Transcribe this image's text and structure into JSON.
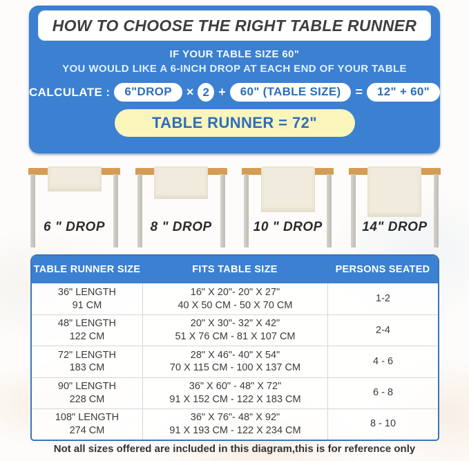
{
  "header": {
    "title": "HOW TO CHOOSE THE RIGHT TABLE RUNNER",
    "subtitle_line1": "IF YOUR TABLE SIZE 60\"",
    "subtitle_line2": "YOU WOULD LIKE A 6-INCH DROP AT EACH END OF YOUR TABLE",
    "calc": {
      "label": "CALCULATE :",
      "drop_pill": "6\"DROP",
      "times_sign": "×",
      "multiplier": "2",
      "plus_sign": "+",
      "table_size_pill": "60\"  (TABLE SIZE)",
      "equals_sign": "=",
      "sum_pill": "12\" + 60\"",
      "result": "TABLE RUNNER = 72\""
    }
  },
  "drops": [
    {
      "label": "6 \" DROP"
    },
    {
      "label": "8 \" DROP"
    },
    {
      "label": "10 \" DROP"
    },
    {
      "label": "14\" DROP"
    }
  ],
  "size_table": {
    "columns": [
      "TABLE RUNNER SIZE",
      "FITS TABLE SIZE",
      "PERSONS SEATED"
    ],
    "rows": [
      {
        "runner_in": "36\" LENGTH",
        "runner_cm": "91 CM",
        "fits_in": "16\" X 20\"- 20\" X 27\"",
        "fits_cm": "40 X 50 CM - 50 X 70 CM",
        "persons": "1-2"
      },
      {
        "runner_in": "48\" LENGTH",
        "runner_cm": "122 CM",
        "fits_in": "20\" X 30\"- 32\" X 42\"",
        "fits_cm": "51 X 76 CM - 81 X 107 CM",
        "persons": "2-4"
      },
      {
        "runner_in": "72\" LENGTH",
        "runner_cm": "183 CM",
        "fits_in": "28\" X 46\"- 40\" X 54\"",
        "fits_cm": "70 X 115 CM - 100 X 137 CM",
        "persons": "4 - 6"
      },
      {
        "runner_in": "90\" LENGTH",
        "runner_cm": "228 CM",
        "fits_in": "36\" X 60\" - 48\" X 72\"",
        "fits_cm": "91 X 152 CM - 122 X 183 CM",
        "persons": "6 - 8"
      },
      {
        "runner_in": "108\" LENGTH",
        "runner_cm": "274 CM",
        "fits_in": "36\" X 76\"- 48\" X 92\"",
        "fits_cm": "91 X 193 CM - 122 X 234 CM",
        "persons": "8 - 10"
      }
    ]
  },
  "footer_note": "Not all sizes offered are included in this diagram,this is for reference only",
  "colors": {
    "panel_blue": "#3b80d1",
    "pill_text_blue": "#2e6db9",
    "result_yellow": "#faf5bb",
    "tabletop_tan": "#d59c55",
    "runner_cream": "#f0ebdc",
    "leg_gray": "#c8c4be",
    "table_border_blue": "#3a74b6",
    "dark_text": "#3a3a3a"
  }
}
